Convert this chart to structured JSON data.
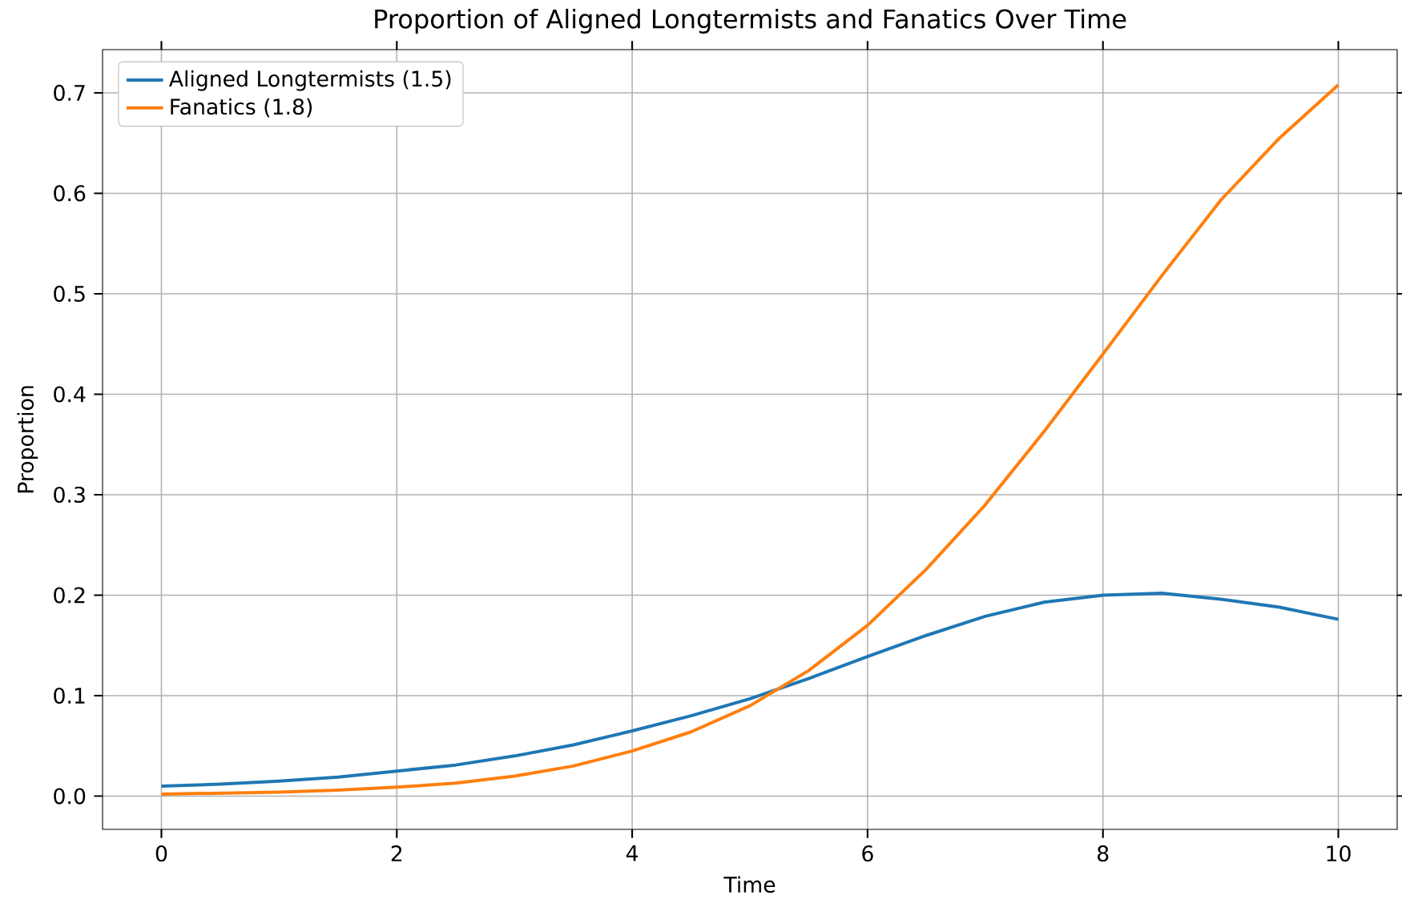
{
  "chart_data": {
    "type": "line",
    "title": "Proportion of Aligned Longtermists and Fanatics Over Time",
    "xlabel": "Time",
    "ylabel": "Proportion",
    "x": [
      0,
      0.5,
      1,
      1.5,
      2,
      2.5,
      3,
      3.5,
      4,
      4.5,
      5,
      5.5,
      6,
      6.5,
      7,
      7.5,
      8,
      8.5,
      9,
      9.5,
      10
    ],
    "series": [
      {
        "name": "Aligned Longtermists (1.5)",
        "color": "#1f77b4",
        "values": [
          0.01,
          0.012,
          0.015,
          0.019,
          0.025,
          0.031,
          0.04,
          0.051,
          0.065,
          0.08,
          0.097,
          0.117,
          0.139,
          0.16,
          0.179,
          0.193,
          0.2,
          0.202,
          0.196,
          0.188,
          0.176
        ]
      },
      {
        "name": "Fanatics (1.8)",
        "color": "#ff7f0e",
        "values": [
          0.002,
          0.003,
          0.004,
          0.006,
          0.009,
          0.013,
          0.02,
          0.03,
          0.045,
          0.064,
          0.09,
          0.125,
          0.17,
          0.226,
          0.29,
          0.363,
          0.44,
          0.518,
          0.593,
          0.655,
          0.708
        ]
      }
    ],
    "xlim": [
      -0.5,
      10.5
    ],
    "ylim": [
      -0.033,
      0.743
    ],
    "xticks": [
      0,
      2,
      4,
      6,
      8,
      10
    ],
    "yticks": [
      {
        "value": 0,
        "label": "0.0"
      },
      {
        "value": 0.1,
        "label": "0.1"
      },
      {
        "value": 0.2,
        "label": "0.2"
      },
      {
        "value": 0.3,
        "label": "0.3"
      },
      {
        "value": 0.4,
        "label": "0.4"
      },
      {
        "value": 0.5,
        "label": "0.5"
      },
      {
        "value": 0.6,
        "label": "0.6"
      },
      {
        "value": 0.7,
        "label": "0.7"
      }
    ],
    "grid": true,
    "legend": "top left",
    "marker": "none",
    "line_style": "solid"
  }
}
